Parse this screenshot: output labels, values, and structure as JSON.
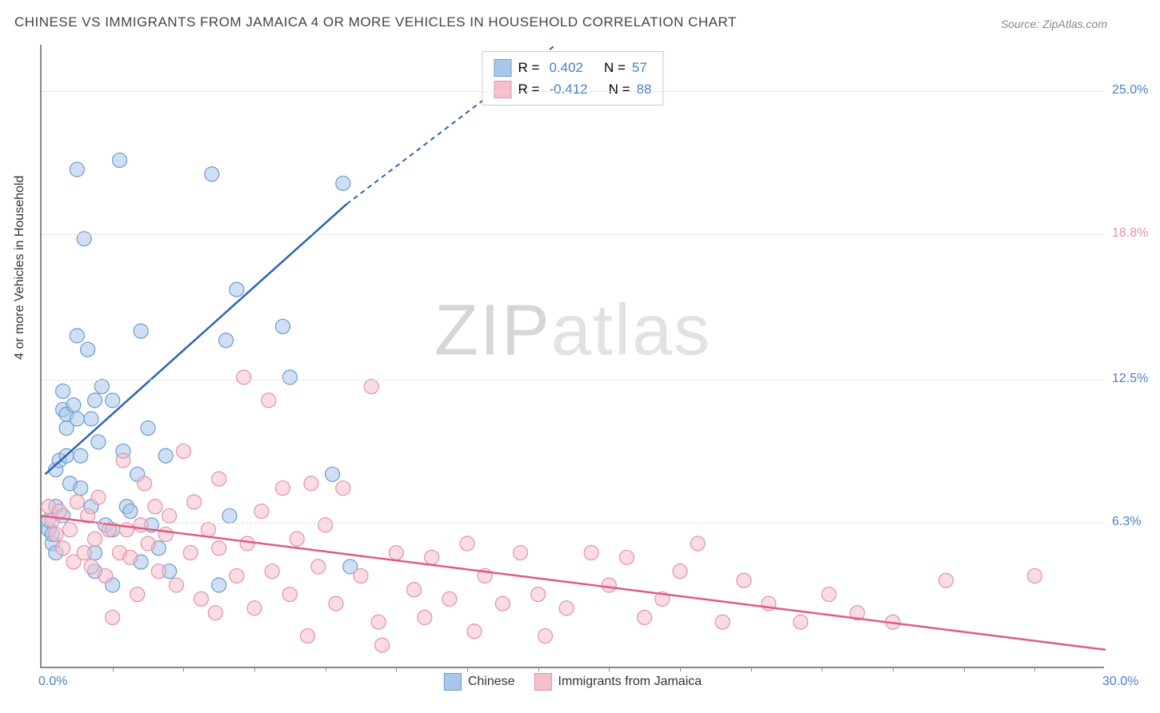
{
  "title": "CHINESE VS IMMIGRANTS FROM JAMAICA 4 OR MORE VEHICLES IN HOUSEHOLD CORRELATION CHART",
  "source": "Source: ZipAtlas.com",
  "y_axis_label": "4 or more Vehicles in Household",
  "watermark_a": "ZIP",
  "watermark_b": "atlas",
  "chart": {
    "type": "scatter",
    "background_color": "#ffffff",
    "grid_color": "#dddddd",
    "axis_color": "#888888",
    "xlim": [
      0,
      30
    ],
    "ylim": [
      0,
      27
    ],
    "x_ticks": [
      {
        "value": 0,
        "label": "0.0%",
        "color": "#4a7fc5"
      },
      {
        "value": 30,
        "label": "30.0%",
        "color": "#4a7fc5"
      }
    ],
    "x_minor_ticks": [
      2,
      4,
      6,
      8,
      10,
      12,
      14,
      16,
      18,
      20,
      22,
      24,
      26,
      28
    ],
    "y_ticks": [
      {
        "value": 6.3,
        "label": "6.3%",
        "color": "#4a7fc5"
      },
      {
        "value": 12.5,
        "label": "12.5%",
        "color": "#4a7fc5"
      },
      {
        "value": 18.8,
        "label": "18.8%",
        "color": "#e391a8"
      },
      {
        "value": 25.0,
        "label": "25.0%",
        "color": "#4a7fc5"
      }
    ],
    "series": [
      {
        "name": "Chinese",
        "fill": "#a9c7eb",
        "stroke": "#6b9ad0",
        "fill_opacity": 0.55,
        "line_color": "#2e62b5",
        "marker_r": 9,
        "R": "0.402",
        "N": "57",
        "trend": {
          "x1": 0.1,
          "y1": 8.4,
          "x2_solid": 8.6,
          "y2_solid": 20.1,
          "x2_dash": 14.5,
          "y2_dash": 27.0
        },
        "points": [
          [
            0.2,
            6.0
          ],
          [
            0.2,
            6.4
          ],
          [
            0.3,
            5.4
          ],
          [
            0.3,
            5.8
          ],
          [
            0.4,
            7.0
          ],
          [
            0.4,
            5.0
          ],
          [
            0.4,
            8.6
          ],
          [
            0.5,
            9.0
          ],
          [
            0.6,
            12.0
          ],
          [
            0.6,
            11.2
          ],
          [
            0.7,
            10.4
          ],
          [
            0.7,
            9.2
          ],
          [
            0.8,
            8.0
          ],
          [
            0.6,
            6.6
          ],
          [
            0.7,
            11.0
          ],
          [
            0.9,
            11.4
          ],
          [
            1.0,
            10.8
          ],
          [
            1.0,
            14.4
          ],
          [
            1.1,
            9.2
          ],
          [
            1.1,
            7.8
          ],
          [
            1.2,
            18.6
          ],
          [
            1.3,
            13.8
          ],
          [
            1.4,
            10.8
          ],
          [
            1.4,
            7.0
          ],
          [
            1.5,
            11.6
          ],
          [
            1.5,
            5.0
          ],
          [
            1.5,
            4.2
          ],
          [
            1.6,
            9.8
          ],
          [
            1.7,
            12.2
          ],
          [
            1.8,
            6.2
          ],
          [
            2.0,
            11.6
          ],
          [
            2.0,
            6.0
          ],
          [
            2.0,
            3.6
          ],
          [
            2.2,
            22.0
          ],
          [
            2.3,
            9.4
          ],
          [
            2.4,
            7.0
          ],
          [
            2.5,
            6.8
          ],
          [
            2.7,
            8.4
          ],
          [
            2.8,
            4.6
          ],
          [
            2.8,
            14.6
          ],
          [
            3.0,
            10.4
          ],
          [
            3.1,
            6.2
          ],
          [
            3.3,
            5.2
          ],
          [
            3.5,
            9.2
          ],
          [
            3.6,
            4.2
          ],
          [
            4.8,
            21.4
          ],
          [
            5.0,
            3.6
          ],
          [
            5.2,
            14.2
          ],
          [
            5.3,
            6.6
          ],
          [
            5.5,
            16.4
          ],
          [
            6.8,
            14.8
          ],
          [
            7.0,
            12.6
          ],
          [
            8.2,
            8.4
          ],
          [
            8.5,
            21.0
          ],
          [
            8.7,
            4.4
          ],
          [
            1.0,
            21.6
          ]
        ]
      },
      {
        "name": "Immigrants from Jamaica",
        "fill": "#f5bfcb",
        "stroke": "#e391a8",
        "fill_opacity": 0.55,
        "line_color": "#e15a84",
        "marker_r": 9,
        "R": "-0.412",
        "N": "88",
        "trend": {
          "x1": 0.0,
          "y1": 6.6,
          "x2_solid": 30.0,
          "y2_solid": 0.8
        },
        "points": [
          [
            0.2,
            7.0
          ],
          [
            0.3,
            6.4
          ],
          [
            0.4,
            5.8
          ],
          [
            0.5,
            6.8
          ],
          [
            0.6,
            5.2
          ],
          [
            0.8,
            6.0
          ],
          [
            0.9,
            4.6
          ],
          [
            1.0,
            7.2
          ],
          [
            1.2,
            5.0
          ],
          [
            1.3,
            6.6
          ],
          [
            1.4,
            4.4
          ],
          [
            1.5,
            5.6
          ],
          [
            1.6,
            7.4
          ],
          [
            1.8,
            4.0
          ],
          [
            1.9,
            6.0
          ],
          [
            2.0,
            2.2
          ],
          [
            2.2,
            5.0
          ],
          [
            2.3,
            9.0
          ],
          [
            2.4,
            6.0
          ],
          [
            2.5,
            4.8
          ],
          [
            2.7,
            3.2
          ],
          [
            2.8,
            6.2
          ],
          [
            2.9,
            8.0
          ],
          [
            3.0,
            5.4
          ],
          [
            3.2,
            7.0
          ],
          [
            3.3,
            4.2
          ],
          [
            3.5,
            5.8
          ],
          [
            3.6,
            6.6
          ],
          [
            3.8,
            3.6
          ],
          [
            4.0,
            9.4
          ],
          [
            4.2,
            5.0
          ],
          [
            4.3,
            7.2
          ],
          [
            4.5,
            3.0
          ],
          [
            4.7,
            6.0
          ],
          [
            4.9,
            2.4
          ],
          [
            5.0,
            8.2
          ],
          [
            5.0,
            5.2
          ],
          [
            5.5,
            4.0
          ],
          [
            5.7,
            12.6
          ],
          [
            5.8,
            5.4
          ],
          [
            6.0,
            2.6
          ],
          [
            6.2,
            6.8
          ],
          [
            6.4,
            11.6
          ],
          [
            6.5,
            4.2
          ],
          [
            6.8,
            7.8
          ],
          [
            7.0,
            3.2
          ],
          [
            7.2,
            5.6
          ],
          [
            7.5,
            1.4
          ],
          [
            7.6,
            8.0
          ],
          [
            7.8,
            4.4
          ],
          [
            8.0,
            6.2
          ],
          [
            8.3,
            2.8
          ],
          [
            8.5,
            7.8
          ],
          [
            9.0,
            4.0
          ],
          [
            9.3,
            12.2
          ],
          [
            9.5,
            2.0
          ],
          [
            9.6,
            1.0
          ],
          [
            10.0,
            5.0
          ],
          [
            10.5,
            3.4
          ],
          [
            10.8,
            2.2
          ],
          [
            11.0,
            4.8
          ],
          [
            11.5,
            3.0
          ],
          [
            12.0,
            5.4
          ],
          [
            12.2,
            1.6
          ],
          [
            12.5,
            4.0
          ],
          [
            13.0,
            2.8
          ],
          [
            13.5,
            5.0
          ],
          [
            14.0,
            3.2
          ],
          [
            14.2,
            1.4
          ],
          [
            14.8,
            2.6
          ],
          [
            15.5,
            5.0
          ],
          [
            16.0,
            3.6
          ],
          [
            16.5,
            4.8
          ],
          [
            17.0,
            2.2
          ],
          [
            17.5,
            3.0
          ],
          [
            18.0,
            4.2
          ],
          [
            18.5,
            5.4
          ],
          [
            19.2,
            2.0
          ],
          [
            19.8,
            3.8
          ],
          [
            20.5,
            2.8
          ],
          [
            21.4,
            2.0
          ],
          [
            22.2,
            3.2
          ],
          [
            23.0,
            2.4
          ],
          [
            24.0,
            2.0
          ],
          [
            25.5,
            3.8
          ],
          [
            28.0,
            4.0
          ]
        ]
      }
    ],
    "legend_position": "top-center",
    "bottom_legend": [
      {
        "label": "Chinese",
        "fill": "#a9c7eb",
        "stroke": "#6b9ad0"
      },
      {
        "label": "Immigrants from Jamaica",
        "fill": "#f5bfcb",
        "stroke": "#e391a8"
      }
    ]
  }
}
